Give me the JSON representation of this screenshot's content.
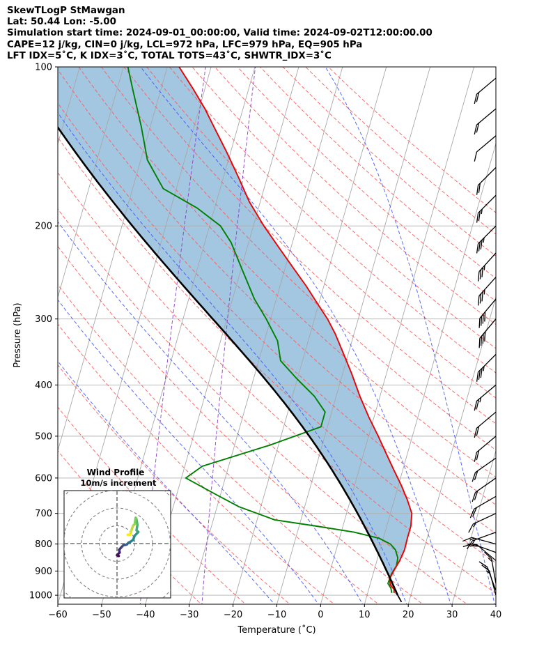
{
  "header": {
    "line1": "SkewTLogP StMawgan",
    "line2": "Lat: 50.44   Lon: -5.00",
    "line3": "Simulation start time: 2024-09-01_00:00:00, Valid time: 2024-09-02T12:00:00.00",
    "line4": "CAPE=12 j/kg, CIN=0 j/kg, LCL=972 hPa, LFC=979 hPa, EQ=905 hPa",
    "line5": "LFT IDX=5˚C, K IDX=3˚C, TOTAL TOTS=43˚C, SHWTR_IDX=3˚C"
  },
  "colors": {
    "temperature": "#ee0000",
    "dewpoint": "#008000",
    "parcel": "#000000",
    "cape_fill": "#7fb0d5",
    "dry_adiabat": "#ff5a5a",
    "moist_adiabat": "#3c50ff",
    "mixing_ratio": "#8c3cc8",
    "isotherm": "#a8a8a8"
  },
  "chart_data": {
    "type": "skewt-logp",
    "xlabel": "Temperature (˚C)",
    "ylabel": "Pressure (hPa)",
    "xlim": [
      -60,
      40
    ],
    "ylim": [
      1040,
      100
    ],
    "x_ticks": [
      -60,
      -50,
      -40,
      -30,
      -20,
      -10,
      0,
      10,
      20,
      30,
      40
    ],
    "y_ticks": [
      1000,
      900,
      800,
      700,
      600,
      500,
      400,
      300,
      200,
      100
    ],
    "temperature_profile": [
      {
        "p": 990,
        "t": 16.0
      },
      {
        "p": 975,
        "t": 15.8
      },
      {
        "p": 955,
        "t": 14.6
      },
      {
        "p": 930,
        "t": 14.1
      },
      {
        "p": 900,
        "t": 14.5
      },
      {
        "p": 860,
        "t": 15.2
      },
      {
        "p": 820,
        "t": 15.6
      },
      {
        "p": 780,
        "t": 15.5
      },
      {
        "p": 740,
        "t": 15.5
      },
      {
        "p": 700,
        "t": 14.9
      },
      {
        "p": 660,
        "t": 13.0
      },
      {
        "p": 620,
        "t": 10.7
      },
      {
        "p": 580,
        "t": 8.0
      },
      {
        "p": 540,
        "t": 5.2
      },
      {
        "p": 500,
        "t": 2.2
      },
      {
        "p": 460,
        "t": -1.2
      },
      {
        "p": 420,
        "t": -4.6
      },
      {
        "p": 380,
        "t": -8.0
      },
      {
        "p": 350,
        "t": -11.0
      },
      {
        "p": 320,
        "t": -14.3
      },
      {
        "p": 300,
        "t": -17.0
      },
      {
        "p": 280,
        "t": -20.4
      },
      {
        "p": 260,
        "t": -24.0
      },
      {
        "p": 240,
        "t": -28.2
      },
      {
        "p": 220,
        "t": -32.7
      },
      {
        "p": 200,
        "t": -37.6
      },
      {
        "p": 180,
        "t": -42.5
      },
      {
        "p": 160,
        "t": -47.0
      },
      {
        "p": 145,
        "t": -50.9
      },
      {
        "p": 130,
        "t": -55.4
      },
      {
        "p": 120,
        "t": -58.7
      },
      {
        "p": 110,
        "t": -62.7
      },
      {
        "p": 100,
        "t": -67.3
      }
    ],
    "dewpoint_profile": [
      {
        "p": 990,
        "t": 15.5
      },
      {
        "p": 970,
        "t": 15.0
      },
      {
        "p": 950,
        "t": 14.0
      },
      {
        "p": 930,
        "t": 14.1
      },
      {
        "p": 910,
        "t": 14.2
      },
      {
        "p": 880,
        "t": 14.8
      },
      {
        "p": 850,
        "t": 14.6
      },
      {
        "p": 820,
        "t": 13.5
      },
      {
        "p": 800,
        "t": 12.0
      },
      {
        "p": 780,
        "t": 9.0
      },
      {
        "p": 760,
        "t": 3.0
      },
      {
        "p": 740,
        "t": -6.0
      },
      {
        "p": 720,
        "t": -16.0
      },
      {
        "p": 680,
        "t": -25.0
      },
      {
        "p": 645,
        "t": -31.0
      },
      {
        "p": 600,
        "t": -39.0
      },
      {
        "p": 570,
        "t": -36.0
      },
      {
        "p": 520,
        "t": -22.0
      },
      {
        "p": 480,
        "t": -11.5
      },
      {
        "p": 450,
        "t": -11.5
      },
      {
        "p": 420,
        "t": -15.0
      },
      {
        "p": 390,
        "t": -20.0
      },
      {
        "p": 360,
        "t": -25.0
      },
      {
        "p": 330,
        "t": -27.0
      },
      {
        "p": 300,
        "t": -31.0
      },
      {
        "p": 275,
        "t": -35.0
      },
      {
        "p": 240,
        "t": -40.0
      },
      {
        "p": 215,
        "t": -44.0
      },
      {
        "p": 200,
        "t": -47.5
      },
      {
        "p": 185,
        "t": -54.0
      },
      {
        "p": 170,
        "t": -63.0
      },
      {
        "p": 150,
        "t": -68.5
      },
      {
        "p": 130,
        "t": -72.0
      },
      {
        "p": 110,
        "t": -76.5
      },
      {
        "p": 100,
        "t": -79.0
      }
    ],
    "parcel_start": {
      "p": 1000,
      "t": 17.0
    },
    "wind_profile": {
      "title": "Wind Profile",
      "subtitle": "10m/s increment",
      "ring_step_ms": 10,
      "rings": 3,
      "hodograph": [
        {
          "u": 1.0,
          "v": -7.0
        },
        {
          "u": 0.0,
          "v": -6.5
        },
        {
          "u": 1.5,
          "v": -5.0
        },
        {
          "u": 1.2,
          "v": -3.5
        },
        {
          "u": 2.5,
          "v": -2.0
        },
        {
          "u": 3.5,
          "v": -1.0
        },
        {
          "u": 5.5,
          "v": -0.5
        },
        {
          "u": 6.5,
          "v": 0.5
        },
        {
          "u": 7.5,
          "v": 1.0
        },
        {
          "u": 9.0,
          "v": 2.0
        },
        {
          "u": 10.0,
          "v": 4.5
        },
        {
          "u": 12.0,
          "v": 6.5
        },
        {
          "u": 11.0,
          "v": 7.5
        },
        {
          "u": 11.5,
          "v": 10.5
        },
        {
          "u": 11.0,
          "v": 13.5
        },
        {
          "u": 10.5,
          "v": 14.5
        },
        {
          "u": 10.0,
          "v": 11.0
        },
        {
          "u": 9.0,
          "v": 10.0
        },
        {
          "u": 8.0,
          "v": 7.0
        },
        {
          "u": 7.5,
          "v": 5.0
        },
        {
          "u": 6.0,
          "v": 5.0
        }
      ]
    },
    "wind_barbs": [
      {
        "p": 1000,
        "speed_kt": 15,
        "dir_deg": 345
      },
      {
        "p": 980,
        "speed_kt": 15,
        "dir_deg": 340
      },
      {
        "p": 950,
        "speed_kt": 15,
        "dir_deg": 350
      },
      {
        "p": 900,
        "speed_kt": 15,
        "dir_deg": 15
      },
      {
        "p": 860,
        "speed_kt": 20,
        "dir_deg": 310
      },
      {
        "p": 830,
        "speed_kt": 15,
        "dir_deg": 290
      },
      {
        "p": 800,
        "speed_kt": 15,
        "dir_deg": 285
      },
      {
        "p": 760,
        "speed_kt": 15,
        "dir_deg": 250
      },
      {
        "p": 700,
        "speed_kt": 15,
        "dir_deg": 245
      },
      {
        "p": 650,
        "speed_kt": 20,
        "dir_deg": 240
      },
      {
        "p": 600,
        "speed_kt": 20,
        "dir_deg": 235
      },
      {
        "p": 550,
        "speed_kt": 20,
        "dir_deg": 235
      },
      {
        "p": 500,
        "speed_kt": 20,
        "dir_deg": 230
      },
      {
        "p": 450,
        "speed_kt": 20,
        "dir_deg": 230
      },
      {
        "p": 400,
        "speed_kt": 25,
        "dir_deg": 230
      },
      {
        "p": 350,
        "speed_kt": 35,
        "dir_deg": 225
      },
      {
        "p": 300,
        "speed_kt": 40,
        "dir_deg": 220
      },
      {
        "p": 275,
        "speed_kt": 40,
        "dir_deg": 220
      },
      {
        "p": 250,
        "speed_kt": 35,
        "dir_deg": 222
      },
      {
        "p": 225,
        "speed_kt": 35,
        "dir_deg": 222
      },
      {
        "p": 200,
        "speed_kt": 35,
        "dir_deg": 225
      },
      {
        "p": 175,
        "speed_kt": 25,
        "dir_deg": 225
      },
      {
        "p": 155,
        "speed_kt": 20,
        "dir_deg": 225
      },
      {
        "p": 135,
        "speed_kt": 10,
        "dir_deg": 230
      },
      {
        "p": 120,
        "speed_kt": 20,
        "dir_deg": 230
      },
      {
        "p": 105,
        "speed_kt": 20,
        "dir_deg": 230
      }
    ]
  }
}
